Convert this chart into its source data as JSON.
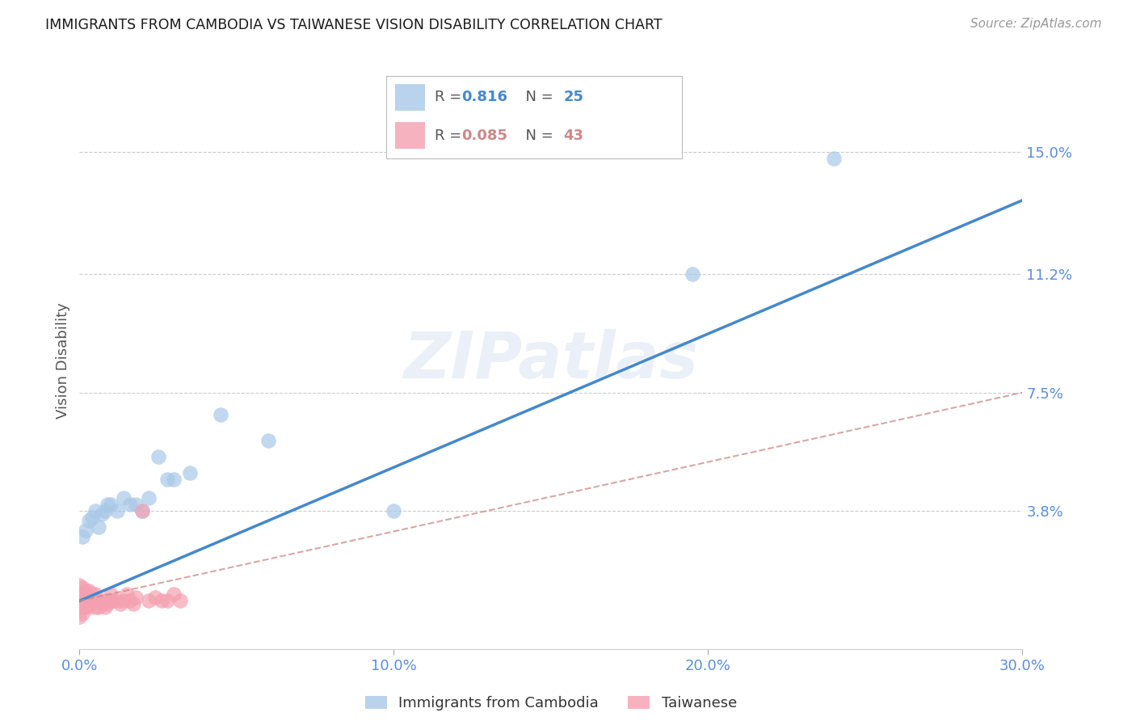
{
  "title": "IMMIGRANTS FROM CAMBODIA VS TAIWANESE VISION DISABILITY CORRELATION CHART",
  "source": "Source: ZipAtlas.com",
  "ylabel": "Vision Disability",
  "watermark": "ZIPatlas",
  "xlim": [
    0.0,
    0.3
  ],
  "ylim": [
    -0.005,
    0.175
  ],
  "xticks": [
    0.0,
    0.1,
    0.2,
    0.3
  ],
  "xtick_labels": [
    "0.0%",
    "10.0%",
    "20.0%",
    "30.0%"
  ],
  "ytick_labels": [
    "15.0%",
    "11.2%",
    "7.5%",
    "3.8%"
  ],
  "ytick_values": [
    0.15,
    0.112,
    0.075,
    0.038
  ],
  "legend1_label": "Immigrants from Cambodia",
  "legend2_label": "Taiwanese",
  "R1": 0.816,
  "N1": 25,
  "R2": 0.085,
  "N2": 43,
  "blue_color": "#a8c8e8",
  "pink_color": "#f4a0b0",
  "blue_line_color": "#4488cc",
  "pink_line_color": "#cc8888",
  "axis_label_color": "#5b8dd9",
  "tick_color": "#5b8dd9",
  "background_color": "#ffffff",
  "blue_scatter_x": [
    0.001,
    0.002,
    0.003,
    0.004,
    0.005,
    0.006,
    0.007,
    0.008,
    0.009,
    0.01,
    0.012,
    0.014,
    0.016,
    0.018,
    0.02,
    0.022,
    0.025,
    0.028,
    0.03,
    0.035,
    0.045,
    0.06,
    0.1,
    0.195,
    0.24
  ],
  "blue_scatter_y": [
    0.03,
    0.032,
    0.035,
    0.036,
    0.038,
    0.033,
    0.037,
    0.038,
    0.04,
    0.04,
    0.038,
    0.042,
    0.04,
    0.04,
    0.038,
    0.042,
    0.055,
    0.048,
    0.048,
    0.05,
    0.068,
    0.06,
    0.038,
    0.112,
    0.148
  ],
  "pink_scatter_x": [
    0.0,
    0.0,
    0.0,
    0.0,
    0.0,
    0.001,
    0.001,
    0.001,
    0.001,
    0.001,
    0.002,
    0.002,
    0.002,
    0.003,
    0.003,
    0.003,
    0.004,
    0.004,
    0.005,
    0.005,
    0.006,
    0.006,
    0.007,
    0.008,
    0.008,
    0.009,
    0.01,
    0.01,
    0.011,
    0.012,
    0.013,
    0.014,
    0.015,
    0.016,
    0.017,
    0.018,
    0.02,
    0.022,
    0.024,
    0.026,
    0.028,
    0.03,
    0.032
  ],
  "pink_scatter_y": [
    0.005,
    0.008,
    0.01,
    0.012,
    0.015,
    0.006,
    0.008,
    0.01,
    0.012,
    0.014,
    0.008,
    0.01,
    0.013,
    0.008,
    0.01,
    0.013,
    0.01,
    0.012,
    0.008,
    0.012,
    0.008,
    0.01,
    0.009,
    0.01,
    0.008,
    0.009,
    0.01,
    0.012,
    0.01,
    0.01,
    0.009,
    0.01,
    0.012,
    0.01,
    0.009,
    0.011,
    0.038,
    0.01,
    0.011,
    0.01,
    0.01,
    0.012,
    0.01
  ],
  "blue_line_x": [
    0.0,
    0.3
  ],
  "blue_line_y": [
    0.01,
    0.135
  ],
  "pink_line_x": [
    0.0,
    0.3
  ],
  "pink_line_y": [
    0.01,
    0.075
  ]
}
